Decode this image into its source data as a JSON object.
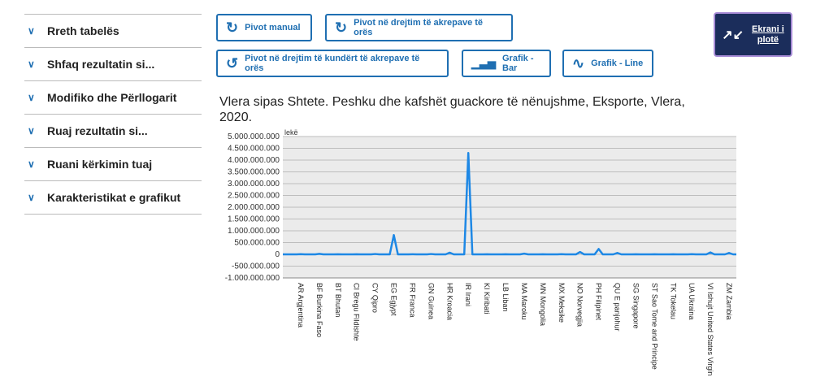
{
  "sidebar": {
    "items": [
      {
        "label": "Rreth tabelës"
      },
      {
        "label": "Shfaq rezultatin si..."
      },
      {
        "label": "Modifiko dhe Përllogarit"
      },
      {
        "label": "Ruaj rezultatin si..."
      },
      {
        "label": "Ruani kërkimin tuaj"
      },
      {
        "label": "Karakteristikat e grafikut"
      }
    ]
  },
  "toolbar": {
    "pivot_manual": "Pivot manual",
    "pivot_cw": "Pivot në drejtim të akrepave të orës",
    "pivot_ccw": "Pivot në drejtim të kundërt të akrepave të orës",
    "bar": "Grafik - Bar",
    "line": "Grafik - Line",
    "fullscreen1": "Ekrani i",
    "fullscreen2": "plotë"
  },
  "colors": {
    "accent": "#1f6fb2",
    "line": "#1e88e5",
    "plot_bg": "#ebebeb"
  },
  "chart_data": {
    "type": "line",
    "title": "Vlera sipas Shtete. Peshku dhe kafshët guackore të nënujshme, Eksporte, Vlera, 2020.",
    "ylabel": "lekë",
    "xlabel": "",
    "ylim": [
      -1000000000,
      5000000000
    ],
    "yticks": [
      "5.000.000.000",
      "4.500.000.000",
      "4.000.000.000",
      "3.500.000.000",
      "3.000.000.000",
      "2.500.000.000",
      "2.000.000.000",
      "1.500.000.000",
      "1.000.000.000",
      "500.000.000",
      "0",
      "-500.000.000",
      "-1.000.000.000"
    ],
    "grid": true,
    "categories": [
      "AR Argjentina",
      "BF Burkina Faso",
      "BT Bhutan",
      "CI Bregu Fildishte",
      "CY Qipro",
      "EG Egjypt",
      "FR Franca",
      "GN Guinea",
      "HR Kroacia",
      "IR Irani",
      "KI Kiribati",
      "LB Liban",
      "MA Maroku",
      "MN Mongolia",
      "MX Meksike",
      "NO Norvegjia",
      "PH Filipinet",
      "QU E panjohur",
      "SG Singapore",
      "ST Sao Tome and Principe",
      "TK Tokelau",
      "UA Ukraina",
      "VI Ishujt United States Virgin",
      "ZM Zambia"
    ],
    "values": [
      10000000,
      20000000,
      5000000,
      5000000,
      15000000,
      820000000,
      5000000,
      15000000,
      70000000,
      4300000000,
      5000000,
      5000000,
      30000000,
      5000000,
      10000000,
      100000000,
      230000000,
      60000000,
      5000000,
      5000000,
      5000000,
      10000000,
      80000000,
      60000000
    ]
  }
}
